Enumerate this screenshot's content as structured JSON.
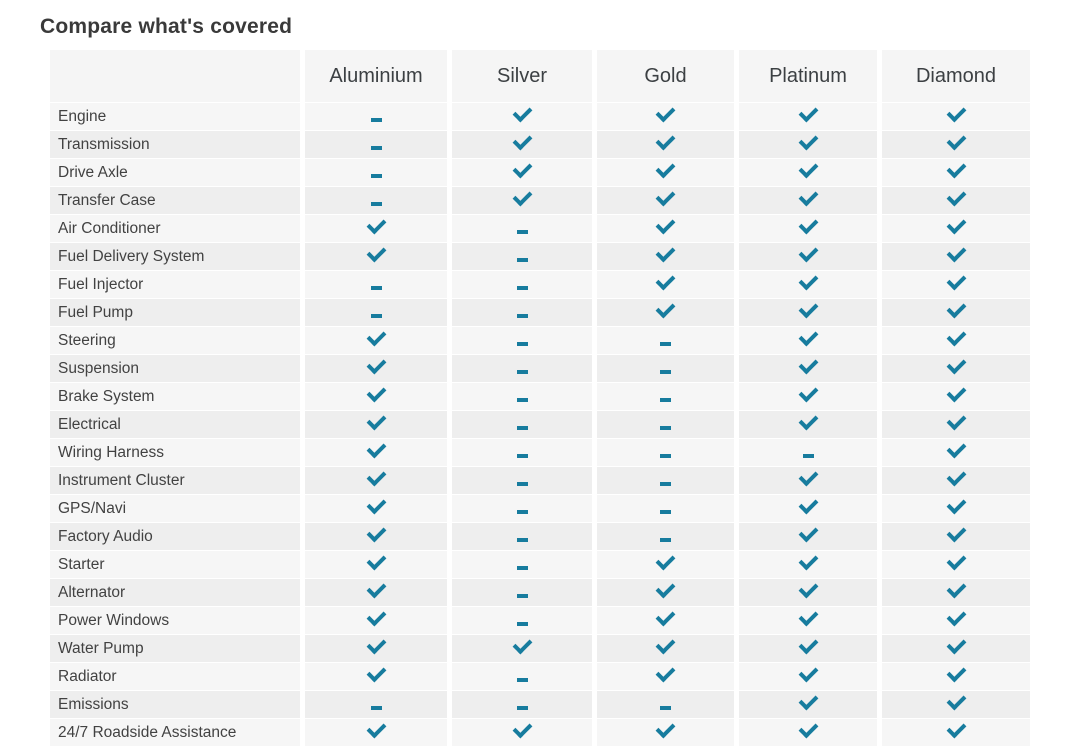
{
  "title": "Compare what's covered",
  "table": {
    "corner_label": "",
    "plans": [
      "Aluminium",
      "Silver",
      "Gold",
      "Platinum",
      "Diamond"
    ],
    "rows": [
      {
        "feature": "Engine",
        "coverage": [
          "dash",
          "check",
          "check",
          "check",
          "check"
        ]
      },
      {
        "feature": "Transmission",
        "coverage": [
          "dash",
          "check",
          "check",
          "check",
          "check"
        ]
      },
      {
        "feature": "Drive Axle",
        "coverage": [
          "dash",
          "check",
          "check",
          "check",
          "check"
        ]
      },
      {
        "feature": "Transfer Case",
        "coverage": [
          "dash",
          "check",
          "check",
          "check",
          "check"
        ]
      },
      {
        "feature": "Air Conditioner",
        "coverage": [
          "check",
          "dash",
          "check",
          "check",
          "check"
        ]
      },
      {
        "feature": "Fuel Delivery System",
        "coverage": [
          "check",
          "dash",
          "check",
          "check",
          "check"
        ]
      },
      {
        "feature": "Fuel Injector",
        "coverage": [
          "dash",
          "dash",
          "check",
          "check",
          "check"
        ]
      },
      {
        "feature": "Fuel Pump",
        "coverage": [
          "dash",
          "dash",
          "check",
          "check",
          "check"
        ]
      },
      {
        "feature": "Steering",
        "coverage": [
          "check",
          "dash",
          "dash",
          "check",
          "check"
        ]
      },
      {
        "feature": "Suspension",
        "coverage": [
          "check",
          "dash",
          "dash",
          "check",
          "check"
        ]
      },
      {
        "feature": "Brake System",
        "coverage": [
          "check",
          "dash",
          "dash",
          "check",
          "check"
        ]
      },
      {
        "feature": "Electrical",
        "coverage": [
          "check",
          "dash",
          "dash",
          "check",
          "check"
        ]
      },
      {
        "feature": "Wiring Harness",
        "coverage": [
          "check",
          "dash",
          "dash",
          "dash",
          "check"
        ]
      },
      {
        "feature": "Instrument Cluster",
        "coverage": [
          "check",
          "dash",
          "dash",
          "check",
          "check"
        ]
      },
      {
        "feature": "GPS/Navi",
        "coverage": [
          "check",
          "dash",
          "dash",
          "check",
          "check"
        ]
      },
      {
        "feature": "Factory Audio",
        "coverage": [
          "check",
          "dash",
          "dash",
          "check",
          "check"
        ]
      },
      {
        "feature": "Starter",
        "coverage": [
          "check",
          "dash",
          "check",
          "check",
          "check"
        ]
      },
      {
        "feature": "Alternator",
        "coverage": [
          "check",
          "dash",
          "check",
          "check",
          "check"
        ]
      },
      {
        "feature": "Power Windows",
        "coverage": [
          "check",
          "dash",
          "check",
          "check",
          "check"
        ]
      },
      {
        "feature": "Water Pump",
        "coverage": [
          "check",
          "check",
          "check",
          "check",
          "check"
        ]
      },
      {
        "feature": "Radiator",
        "coverage": [
          "check",
          "dash",
          "check",
          "check",
          "check"
        ]
      },
      {
        "feature": "Emissions",
        "coverage": [
          "dash",
          "dash",
          "dash",
          "check",
          "check"
        ]
      },
      {
        "feature": "24/7 Roadside Assistance",
        "coverage": [
          "check",
          "check",
          "check",
          "check",
          "check"
        ]
      }
    ],
    "icons": {
      "covered": "check-icon",
      "not_covered": "dash-icon"
    },
    "colors": {
      "icon_teal": "#177C9E",
      "header_bg": "#f5f5f5",
      "row_odd_bg": "#f6f6f6",
      "row_even_bg": "#eeeeee",
      "title_text": "#3a3a3a",
      "body_text": "#424242"
    }
  }
}
